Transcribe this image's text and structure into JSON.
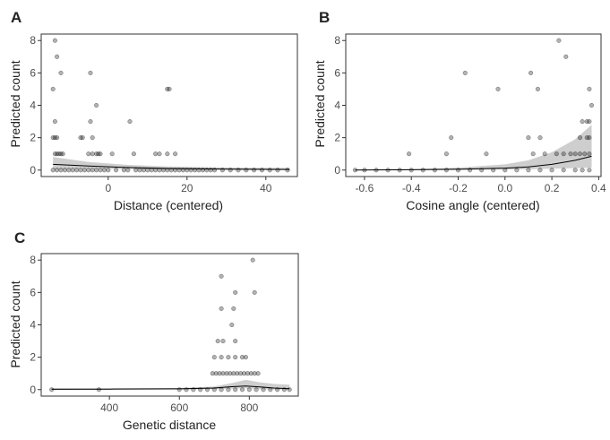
{
  "colors": {
    "point_fill": "#000000",
    "ribbon": "#bdbdbd",
    "line": "#000000",
    "frame": "#333333",
    "tick_text": "#4d4d4d"
  },
  "chart_data": [
    {
      "type": "scatter",
      "panel": "A",
      "xlabel": "Distance (centered)",
      "ylabel": "Predicted count",
      "xlim": [
        -17,
        48
      ],
      "ylim": [
        -0.4,
        8.4
      ],
      "xticks": [
        0,
        20,
        40
      ],
      "xtick_labels": [
        "0",
        "20",
        "40"
      ],
      "yticks": [
        0,
        2,
        4,
        6,
        8
      ],
      "ytick_labels": [
        "0",
        "2",
        "4",
        "6",
        "8"
      ],
      "grid": false,
      "legend": "none",
      "points": [
        [
          -13.5,
          8
        ],
        [
          -13,
          7
        ],
        [
          -12,
          6
        ],
        [
          -14,
          5
        ],
        [
          -4.5,
          6
        ],
        [
          -3,
          4
        ],
        [
          -4.5,
          3
        ],
        [
          5.5,
          3
        ],
        [
          -13.5,
          3
        ],
        [
          15,
          5
        ],
        [
          15.5,
          5
        ],
        [
          -14,
          2
        ],
        [
          -13.5,
          2
        ],
        [
          -13,
          2
        ],
        [
          -7,
          2
        ],
        [
          -6.5,
          2
        ],
        [
          -4,
          2
        ],
        [
          -13.5,
          1
        ],
        [
          -13,
          1
        ],
        [
          -12.5,
          1
        ],
        [
          -12,
          1
        ],
        [
          -11.5,
          1
        ],
        [
          -5,
          1
        ],
        [
          -4,
          1
        ],
        [
          -3,
          1
        ],
        [
          -2.5,
          1
        ],
        [
          -2,
          1
        ],
        [
          1,
          1
        ],
        [
          6.5,
          1
        ],
        [
          12,
          1
        ],
        [
          13,
          1
        ],
        [
          15,
          1
        ],
        [
          17,
          1
        ],
        [
          -14,
          0
        ],
        [
          -13,
          0
        ],
        [
          -12,
          0
        ],
        [
          -11,
          0
        ],
        [
          -10,
          0
        ],
        [
          -9,
          0
        ],
        [
          -8,
          0
        ],
        [
          -7,
          0
        ],
        [
          -6,
          0
        ],
        [
          -5,
          0
        ],
        [
          -4,
          0
        ],
        [
          -3,
          0
        ],
        [
          -2,
          0
        ],
        [
          -1,
          0
        ],
        [
          0,
          0
        ],
        [
          2,
          0
        ],
        [
          4,
          0
        ],
        [
          5,
          0
        ],
        [
          7,
          0
        ],
        [
          8,
          0
        ],
        [
          9,
          0
        ],
        [
          10,
          0
        ],
        [
          11,
          0
        ],
        [
          12,
          0
        ],
        [
          13,
          0
        ],
        [
          14,
          0
        ],
        [
          15,
          0
        ],
        [
          16,
          0
        ],
        [
          17,
          0
        ],
        [
          18,
          0
        ],
        [
          19,
          0
        ],
        [
          20,
          0
        ],
        [
          21,
          0
        ],
        [
          22,
          0
        ],
        [
          23,
          0
        ],
        [
          24,
          0
        ],
        [
          25,
          0
        ],
        [
          26,
          0
        ],
        [
          27,
          0
        ],
        [
          29,
          0
        ],
        [
          31,
          0
        ],
        [
          33,
          0
        ],
        [
          35,
          0
        ],
        [
          37,
          0
        ],
        [
          39,
          0
        ],
        [
          41,
          0
        ],
        [
          43,
          0
        ],
        [
          45.5,
          0
        ]
      ],
      "fit_line": [
        [
          -14,
          0.35
        ],
        [
          -5,
          0.25
        ],
        [
          5,
          0.16
        ],
        [
          15,
          0.1
        ],
        [
          25,
          0.07
        ],
        [
          35,
          0.05
        ],
        [
          46,
          0.04
        ]
      ],
      "ribbon_upper": [
        [
          -14,
          0.8
        ],
        [
          -5,
          0.5
        ],
        [
          5,
          0.32
        ],
        [
          15,
          0.22
        ],
        [
          25,
          0.18
        ],
        [
          35,
          0.15
        ],
        [
          46,
          0.14
        ]
      ],
      "ribbon_lower": [
        [
          -14,
          0.05
        ],
        [
          -5,
          0.08
        ],
        [
          5,
          0.06
        ],
        [
          15,
          0.04
        ],
        [
          25,
          0.02
        ],
        [
          35,
          0.01
        ],
        [
          46,
          0.0
        ]
      ]
    },
    {
      "type": "scatter",
      "panel": "B",
      "xlabel": "Cosine angle (centered)",
      "ylabel": "Predicted count",
      "xlim": [
        -0.68,
        0.41
      ],
      "ylim": [
        -0.4,
        8.4
      ],
      "xticks": [
        -0.6,
        -0.4,
        -0.2,
        0.0,
        0.2,
        0.4
      ],
      "xtick_labels": [
        "-0.6",
        "-0.4",
        "-0.2",
        "0.0",
        "0.2",
        "0.4"
      ],
      "yticks": [
        0,
        2,
        4,
        6,
        8
      ],
      "ytick_labels": [
        "0",
        "2",
        "4",
        "6",
        "8"
      ],
      "grid": false,
      "legend": "none",
      "points": [
        [
          0.23,
          8
        ],
        [
          0.26,
          7
        ],
        [
          -0.17,
          6
        ],
        [
          0.11,
          6
        ],
        [
          0.36,
          5
        ],
        [
          -0.03,
          5
        ],
        [
          0.14,
          5
        ],
        [
          0.37,
          4
        ],
        [
          0.33,
          3
        ],
        [
          0.35,
          3
        ],
        [
          0.36,
          3
        ],
        [
          -0.23,
          2
        ],
        [
          0.1,
          2
        ],
        [
          0.15,
          2
        ],
        [
          0.32,
          2
        ],
        [
          0.35,
          2
        ],
        [
          0.36,
          2
        ],
        [
          -0.41,
          1
        ],
        [
          -0.25,
          1
        ],
        [
          -0.08,
          1
        ],
        [
          0.12,
          1
        ],
        [
          0.17,
          1
        ],
        [
          0.22,
          1
        ],
        [
          0.25,
          1
        ],
        [
          0.28,
          1
        ],
        [
          0.3,
          1
        ],
        [
          0.32,
          1
        ],
        [
          0.34,
          1
        ],
        [
          0.36,
          1
        ],
        [
          -0.64,
          0
        ],
        [
          -0.6,
          0
        ],
        [
          -0.55,
          0
        ],
        [
          -0.5,
          0
        ],
        [
          -0.45,
          0
        ],
        [
          -0.4,
          0
        ],
        [
          -0.35,
          0
        ],
        [
          -0.3,
          0
        ],
        [
          -0.25,
          0
        ],
        [
          -0.2,
          0
        ],
        [
          -0.15,
          0
        ],
        [
          -0.1,
          0
        ],
        [
          -0.05,
          0
        ],
        [
          0.0,
          0
        ],
        [
          0.05,
          0
        ],
        [
          0.1,
          0
        ],
        [
          0.15,
          0
        ],
        [
          0.2,
          0
        ],
        [
          0.25,
          0
        ],
        [
          0.3,
          0
        ],
        [
          0.33,
          0
        ],
        [
          0.36,
          0
        ]
      ],
      "fit_line": [
        [
          -0.64,
          0.0
        ],
        [
          -0.4,
          0.02
        ],
        [
          -0.2,
          0.05
        ],
        [
          0.0,
          0.12
        ],
        [
          0.1,
          0.2
        ],
        [
          0.2,
          0.35
        ],
        [
          0.3,
          0.6
        ],
        [
          0.37,
          0.85
        ]
      ],
      "ribbon_upper": [
        [
          -0.64,
          0.02
        ],
        [
          -0.4,
          0.06
        ],
        [
          -0.2,
          0.15
        ],
        [
          0.0,
          0.35
        ],
        [
          0.1,
          0.6
        ],
        [
          0.2,
          1.1
        ],
        [
          0.3,
          1.9
        ],
        [
          0.37,
          2.8
        ]
      ],
      "ribbon_lower": [
        [
          -0.64,
          0.0
        ],
        [
          -0.4,
          0.0
        ],
        [
          -0.2,
          0.01
        ],
        [
          0.0,
          0.03
        ],
        [
          0.1,
          0.05
        ],
        [
          0.2,
          0.08
        ],
        [
          0.3,
          0.12
        ],
        [
          0.37,
          0.15
        ]
      ]
    },
    {
      "type": "scatter",
      "panel": "C",
      "xlabel": "Genetic distance",
      "ylabel": "Predicted count",
      "xlim": [
        205,
        940
      ],
      "ylim": [
        -0.4,
        8.4
      ],
      "xticks": [
        400,
        600,
        800
      ],
      "xtick_labels": [
        "400",
        "600",
        "800"
      ],
      "yticks": [
        0,
        2,
        4,
        6,
        8
      ],
      "ytick_labels": [
        "0",
        "2",
        "4",
        "6",
        "8"
      ],
      "grid": false,
      "legend": "none",
      "points": [
        [
          810,
          8
        ],
        [
          720,
          7
        ],
        [
          760,
          6
        ],
        [
          815,
          6
        ],
        [
          720,
          5
        ],
        [
          755,
          5
        ],
        [
          750,
          4
        ],
        [
          710,
          3
        ],
        [
          725,
          3
        ],
        [
          760,
          3
        ],
        [
          700,
          2
        ],
        [
          720,
          2
        ],
        [
          740,
          2
        ],
        [
          760,
          2
        ],
        [
          780,
          2
        ],
        [
          790,
          2
        ],
        [
          695,
          1
        ],
        [
          705,
          1
        ],
        [
          715,
          1
        ],
        [
          725,
          1
        ],
        [
          735,
          1
        ],
        [
          745,
          1
        ],
        [
          755,
          1
        ],
        [
          765,
          1
        ],
        [
          775,
          1
        ],
        [
          785,
          1
        ],
        [
          795,
          1
        ],
        [
          805,
          1
        ],
        [
          815,
          1
        ],
        [
          825,
          1
        ],
        [
          235,
          0
        ],
        [
          370,
          0
        ],
        [
          600,
          0
        ],
        [
          620,
          0
        ],
        [
          640,
          0
        ],
        [
          660,
          0
        ],
        [
          680,
          0
        ],
        [
          700,
          0
        ],
        [
          720,
          0
        ],
        [
          740,
          0
        ],
        [
          760,
          0
        ],
        [
          780,
          0
        ],
        [
          800,
          0
        ],
        [
          820,
          0
        ],
        [
          840,
          0
        ],
        [
          860,
          0
        ],
        [
          880,
          0
        ],
        [
          900,
          0
        ],
        [
          915,
          0
        ]
      ],
      "fit_line": [
        [
          235,
          0.02
        ],
        [
          400,
          0.03
        ],
        [
          600,
          0.05
        ],
        [
          700,
          0.1
        ],
        [
          750,
          0.18
        ],
        [
          790,
          0.22
        ],
        [
          830,
          0.17
        ],
        [
          870,
          0.1
        ],
        [
          915,
          0.06
        ]
      ],
      "ribbon_upper": [
        [
          235,
          0.1
        ],
        [
          400,
          0.08
        ],
        [
          600,
          0.1
        ],
        [
          700,
          0.2
        ],
        [
          750,
          0.4
        ],
        [
          790,
          0.6
        ],
        [
          830,
          0.45
        ],
        [
          870,
          0.35
        ],
        [
          915,
          0.3
        ]
      ],
      "ribbon_lower": [
        [
          235,
          0.0
        ],
        [
          400,
          0.0
        ],
        [
          600,
          0.01
        ],
        [
          700,
          0.03
        ],
        [
          750,
          0.06
        ],
        [
          790,
          0.08
        ],
        [
          830,
          0.04
        ],
        [
          870,
          0.01
        ],
        [
          915,
          0.0
        ]
      ]
    }
  ]
}
